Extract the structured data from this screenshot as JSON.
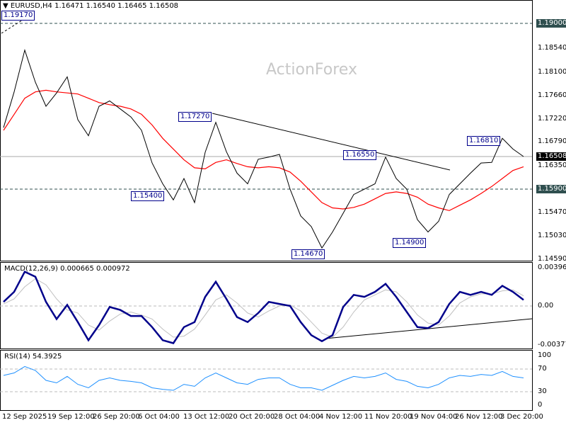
{
  "header": {
    "symbol": "EURUSD,H4",
    "ohlc": "1.16471 1.16540 1.16465 1.16508"
  },
  "watermark": "ActionForex",
  "colors": {
    "price": "#000000",
    "ma": "#ff0000",
    "macd": "#00008b",
    "signal": "#c0c0c0",
    "rsi": "#1e90ff",
    "label_border": "#00008b",
    "level_bg": "#2f4f4f"
  },
  "annotations": [
    "1.19170",
    "1.17270",
    "1.15400",
    "1.14670",
    "1.16550",
    "1.14900",
    "1.16810"
  ],
  "price_axis": [
    "1.18540",
    "1.18100",
    "1.17660",
    "1.17220",
    "1.16790",
    "1.16350",
    "1.15470",
    "1.15030",
    "1.14590"
  ],
  "levels": {
    "resistance": "1.19000",
    "support": "1.15900",
    "current": "1.16508"
  },
  "macd_panel": {
    "title": "MACD(12,26,9) 0.000665 0.000972",
    "ticks": [
      "0.003964",
      "0.00",
      "-0.003774"
    ]
  },
  "rsi_panel": {
    "title": "RSI(14) 54.3925",
    "ticks": [
      "100",
      "70",
      "30",
      "0"
    ]
  },
  "x_axis": [
    "12 Sep 2025",
    "19 Sep 12:00",
    "26 Sep 20:00",
    "6 Oct 04:00",
    "13 Oct 12:00",
    "20 Oct 20:00",
    "28 Oct 04:00",
    "4 Nov 12:00",
    "11 Nov 20:00",
    "19 Nov 04:00",
    "26 Nov 12:00",
    "3 Dec 20:00"
  ],
  "chart_data": [
    {
      "type": "line",
      "title": "EURUSD,H4",
      "ylim": [
        1.1459,
        1.19
      ],
      "series": [
        {
          "values": [
            1.1705,
            1.1772,
            1.185,
            1.179,
            1.1745,
            1.177,
            1.18,
            1.172,
            1.169,
            1.1745,
            1.1755,
            1.174,
            1.1725,
            1.17,
            1.1639,
            1.16,
            1.157,
            1.161,
            1.1565,
            1.1659,
            1.1715,
            1.166,
            1.162,
            1.16,
            1.1646,
            1.165,
            1.1655,
            1.159,
            1.154,
            1.152,
            1.148,
            1.151,
            1.1545,
            1.158,
            1.159,
            1.16,
            1.165,
            1.161,
            1.159,
            1.1533,
            1.151,
            1.153,
            1.158,
            1.16,
            1.162,
            1.1639,
            1.164,
            1.1685,
            1.1665,
            1.1651
          ]
        },
        {
          "values": [
            1.17,
            1.173,
            1.176,
            1.1772,
            1.1775,
            1.1772,
            1.177,
            1.1768,
            1.176,
            1.1752,
            1.1748,
            1.1745,
            1.174,
            1.173,
            1.171,
            1.1685,
            1.1665,
            1.1645,
            1.163,
            1.1628,
            1.164,
            1.1645,
            1.1638,
            1.1632,
            1.163,
            1.1632,
            1.163,
            1.1622,
            1.1605,
            1.1585,
            1.1565,
            1.1555,
            1.1553,
            1.1556,
            1.1562,
            1.1572,
            1.1582,
            1.1585,
            1.1582,
            1.1575,
            1.1562,
            1.1555,
            1.155,
            1.156,
            1.157,
            1.1582,
            1.1595,
            1.161,
            1.1625,
            1.1632
          ]
        }
      ]
    },
    {
      "type": "line",
      "title": "MACD(12,26,9) 0.000665 0.000972",
      "ylim": [
        -0.003774,
        0.003964
      ],
      "series": [
        {
          "values": [
            0.0005,
            0.0015,
            0.0035,
            0.003,
            0.0005,
            -0.0012,
            0.0002,
            -0.0015,
            -0.0033,
            -0.0018,
            0.0,
            -0.0003,
            -0.0009,
            -0.0009,
            -0.002,
            -0.0033,
            -0.0036,
            -0.002,
            -0.0015,
            0.001,
            0.0025,
            0.0008,
            -0.001,
            -0.0015,
            -0.0006,
            0.0005,
            0.0003,
            0.0001,
            -0.0015,
            -0.0028,
            -0.0034,
            -0.0028,
            0.0,
            0.0012,
            0.001,
            0.0015,
            0.0023,
            0.001,
            -0.0005,
            -0.002,
            -0.0021,
            -0.0015,
            0.0003,
            0.0015,
            0.0012,
            0.0015,
            0.0012,
            0.0021,
            0.0015,
            0.0007
          ]
        },
        {
          "values": [
            0.0003,
            0.0008,
            0.002,
            0.0028,
            0.0022,
            0.0008,
            -0.0003,
            -0.0006,
            -0.0018,
            -0.0023,
            -0.0014,
            -0.0007,
            -0.0005,
            -0.0008,
            -0.0012,
            -0.0022,
            -0.003,
            -0.0029,
            -0.0022,
            -0.0008,
            0.0007,
            0.0012,
            0.0004,
            -0.0006,
            -0.001,
            -0.0004,
            0.0001,
            0.0002,
            -0.0004,
            -0.0015,
            -0.0026,
            -0.003,
            -0.002,
            -0.0005,
            0.0007,
            0.0012,
            0.0017,
            0.0015,
            0.0005,
            -0.0008,
            -0.0016,
            -0.0018,
            -0.0009,
            0.0004,
            0.001,
            0.0013,
            0.0013,
            0.0016,
            0.0017,
            0.0011
          ]
        }
      ]
    },
    {
      "type": "line",
      "title": "RSI(14) 54.3925",
      "ylim": [
        0,
        100
      ],
      "series": [
        {
          "values": [
            60,
            65,
            78,
            70,
            50,
            45,
            58,
            42,
            35,
            50,
            55,
            50,
            48,
            45,
            35,
            32,
            30,
            42,
            38,
            55,
            65,
            55,
            45,
            42,
            52,
            55,
            55,
            42,
            35,
            35,
            30,
            40,
            50,
            58,
            55,
            58,
            65,
            52,
            48,
            38,
            35,
            42,
            55,
            60,
            58,
            62,
            60,
            68,
            58,
            55
          ]
        }
      ]
    }
  ]
}
